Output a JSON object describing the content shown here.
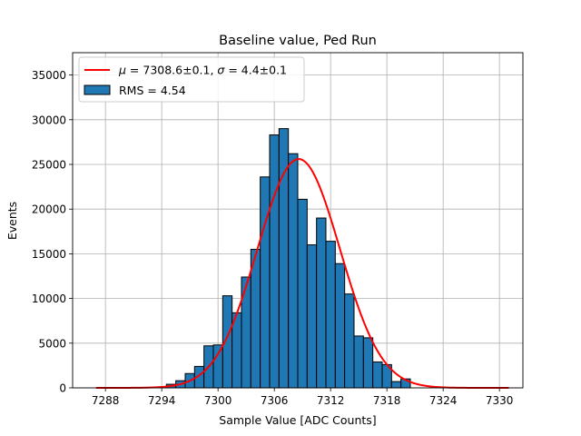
{
  "chart_data": {
    "type": "bar",
    "title": "Baseline value, Ped Run",
    "xlabel": "Sample Value [ADC Counts]",
    "ylabel": "Events",
    "xlim": [
      7284.5,
      7332.5
    ],
    "ylim": [
      0,
      37500
    ],
    "xticks": [
      7288,
      7294,
      7300,
      7306,
      7312,
      7318,
      7324,
      7330
    ],
    "yticks": [
      0,
      5000,
      10000,
      15000,
      20000,
      25000,
      30000,
      35000
    ],
    "grid": true,
    "legend_position": "top-left",
    "bin_width": 1,
    "bins": [
      {
        "x": 7294,
        "count": 100
      },
      {
        "x": 7295,
        "count": 400
      },
      {
        "x": 7296,
        "count": 800
      },
      {
        "x": 7297,
        "count": 1600
      },
      {
        "x": 7298,
        "count": 2400
      },
      {
        "x": 7299,
        "count": 4700
      },
      {
        "x": 7300,
        "count": 4800
      },
      {
        "x": 7301,
        "count": 10300
      },
      {
        "x": 7302,
        "count": 8400
      },
      {
        "x": 7303,
        "count": 12400
      },
      {
        "x": 7304,
        "count": 15500
      },
      {
        "x": 7305,
        "count": 23600
      },
      {
        "x": 7306,
        "count": 28300
      },
      {
        "x": 7307,
        "count": 29000
      },
      {
        "x": 7308,
        "count": 26200
      },
      {
        "x": 7309,
        "count": 21100
      },
      {
        "x": 7310,
        "count": 16000
      },
      {
        "x": 7311,
        "count": 19000
      },
      {
        "x": 7312,
        "count": 16400
      },
      {
        "x": 7313,
        "count": 13900
      },
      {
        "x": 7314,
        "count": 10500
      },
      {
        "x": 7315,
        "count": 5800
      },
      {
        "x": 7316,
        "count": 5600
      },
      {
        "x": 7317,
        "count": 2900
      },
      {
        "x": 7318,
        "count": 2600
      },
      {
        "x": 7319,
        "count": 700
      },
      {
        "x": 7320,
        "count": 1000
      }
    ],
    "fit": {
      "mu": 7308.6,
      "sigma": 4.4,
      "amplitude": 25600,
      "x_range": [
        7287,
        7331
      ]
    },
    "legend": [
      {
        "kind": "line",
        "label": "$\\mu = 7308.6 \\pm 0.1$, $\\sigma = 4.4 \\pm 0.1$",
        "color": "#ff0000"
      },
      {
        "kind": "bar",
        "label": "RMS = 4.54",
        "color": "#1f77b4"
      }
    ],
    "colors": {
      "bar": "#1f77b4",
      "fit": "#ff0000",
      "grid": "#b0b0b0"
    }
  }
}
